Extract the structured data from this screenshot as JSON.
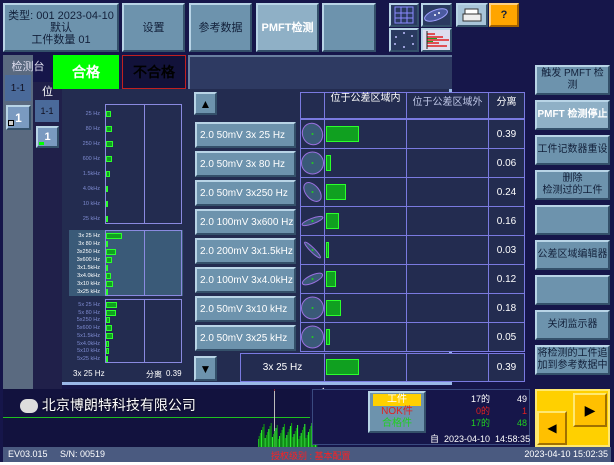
{
  "header": {
    "type_line": "类型: 001   2023-04-10",
    "default": "默认",
    "count": "工件数量 01",
    "settings": "设置",
    "reference": "参考数据",
    "pmft": "PMFT检测",
    "blank": ""
  },
  "toolbar_icons": [
    "grid-icon",
    "ellipse-scatter-icon",
    "points-circle-icon",
    "histogram-icon",
    "printer-icon"
  ],
  "help": "?",
  "left": {
    "title": "检测台",
    "station": "1-1",
    "station_num": "1",
    "pos_title": "位",
    "pos": "1-1",
    "pos_num": "1"
  },
  "result": {
    "ok": "合格",
    "nok": "不合格"
  },
  "mini_chart": {
    "group1": {
      "labels": [
        "25 Hz",
        "80 Hz",
        "250 Hz",
        "600 Hz",
        "1.5kHz",
        "4.0kHz",
        "10 kHz",
        "25 kHz"
      ],
      "values": [
        0.12,
        0.14,
        0.18,
        0.16,
        0.09,
        0.06,
        0.04,
        0.04
      ]
    },
    "group3": {
      "labels": [
        "3x 25 Hz",
        "3x 80 Hz",
        "3x250 Hz",
        "3x600 Hz",
        "3x1.5kHz",
        "3x4.0kHz",
        "3x10 kHz",
        "3x25 kHz"
      ],
      "values": [
        0.39,
        0.06,
        0.24,
        0.16,
        0.03,
        0.12,
        0.18,
        0.05
      ]
    },
    "group5": {
      "labels": [
        "5x 25 Hz",
        "5x 80 Hz",
        "5x250 Hz",
        "5x600 Hz",
        "5x1.5kHz",
        "5x4.0kHz",
        "5x10 kHz",
        "5x25 kHz"
      ],
      "values": [
        0.28,
        0.25,
        0.1,
        0.14,
        0.17,
        0.07,
        0.07,
        0.05
      ]
    },
    "footer_label": "3x 25 Hz",
    "footer_sep_label": "分离",
    "footer_value": "0.39"
  },
  "table": {
    "headers": [
      "位于公差区域内",
      "位于公差区域外",
      "分离"
    ],
    "rows": [
      {
        "label": "2.0    50mV   3x 25 Hz",
        "value": "0.39",
        "ratio": 0.39,
        "angle": 60,
        "ry": 0.9
      },
      {
        "label": "2.0    50mV   3x 80 Hz",
        "value": "0.06",
        "ratio": 0.06,
        "angle": 0,
        "ry": 1
      },
      {
        "label": "2.0    50mV   3x250 Hz",
        "value": "0.24",
        "ratio": 0.24,
        "angle": 50,
        "ry": 0.6
      },
      {
        "label": "2.0  100mV   3x600 Hz",
        "value": "0.16",
        "ratio": 0.16,
        "angle": -20,
        "ry": 0.25
      },
      {
        "label": "2.0  200mV   3x1.5kHz",
        "value": "0.03",
        "ratio": 0.03,
        "angle": 45,
        "ry": 0.2
      },
      {
        "label": "2.0  100mV   3x4.0kHz",
        "value": "0.12",
        "ratio": 0.12,
        "angle": -25,
        "ry": 0.35
      },
      {
        "label": "2.0    50mV   3x10 kHz",
        "value": "0.18",
        "ratio": 0.18,
        "angle": 0,
        "ry": 1
      },
      {
        "label": "2.0    50mV   3x25 kHz",
        "value": "0.05",
        "ratio": 0.05,
        "angle": 0,
        "ry": 1
      }
    ],
    "summary": {
      "label": "3x 25 Hz",
      "value": "0.39",
      "ratio": 0.39
    }
  },
  "right_buttons": [
    "触发 PMFT 检测",
    "PMFT 检测停止",
    "工件记数器重设",
    "删除\n检测过的工件",
    "",
    "公差区域编辑器",
    "",
    "关闭监示器",
    "将检测的工件追\n加到参考数据中"
  ],
  "counter": {
    "parts": "工件",
    "nok": "NOK件",
    "ok": "合格件",
    "parts_of": "17的",
    "parts_n": "49",
    "nok_of": "0的",
    "nok_n": "1",
    "ok_of": "17的",
    "ok_n": "48",
    "since": "自  2023-04-10  14:58:35"
  },
  "watermark": "北京博朗特科技有限公司",
  "status": {
    "version": "EV03.015",
    "serial": "S/N: 00519",
    "auth": "授权级别 : 基本配置",
    "datetime": "2023-04-10  15:02:35"
  },
  "colors": {
    "ok": "#00ff00",
    "nok": "#ff2020",
    "accent": "#ffcc00"
  }
}
